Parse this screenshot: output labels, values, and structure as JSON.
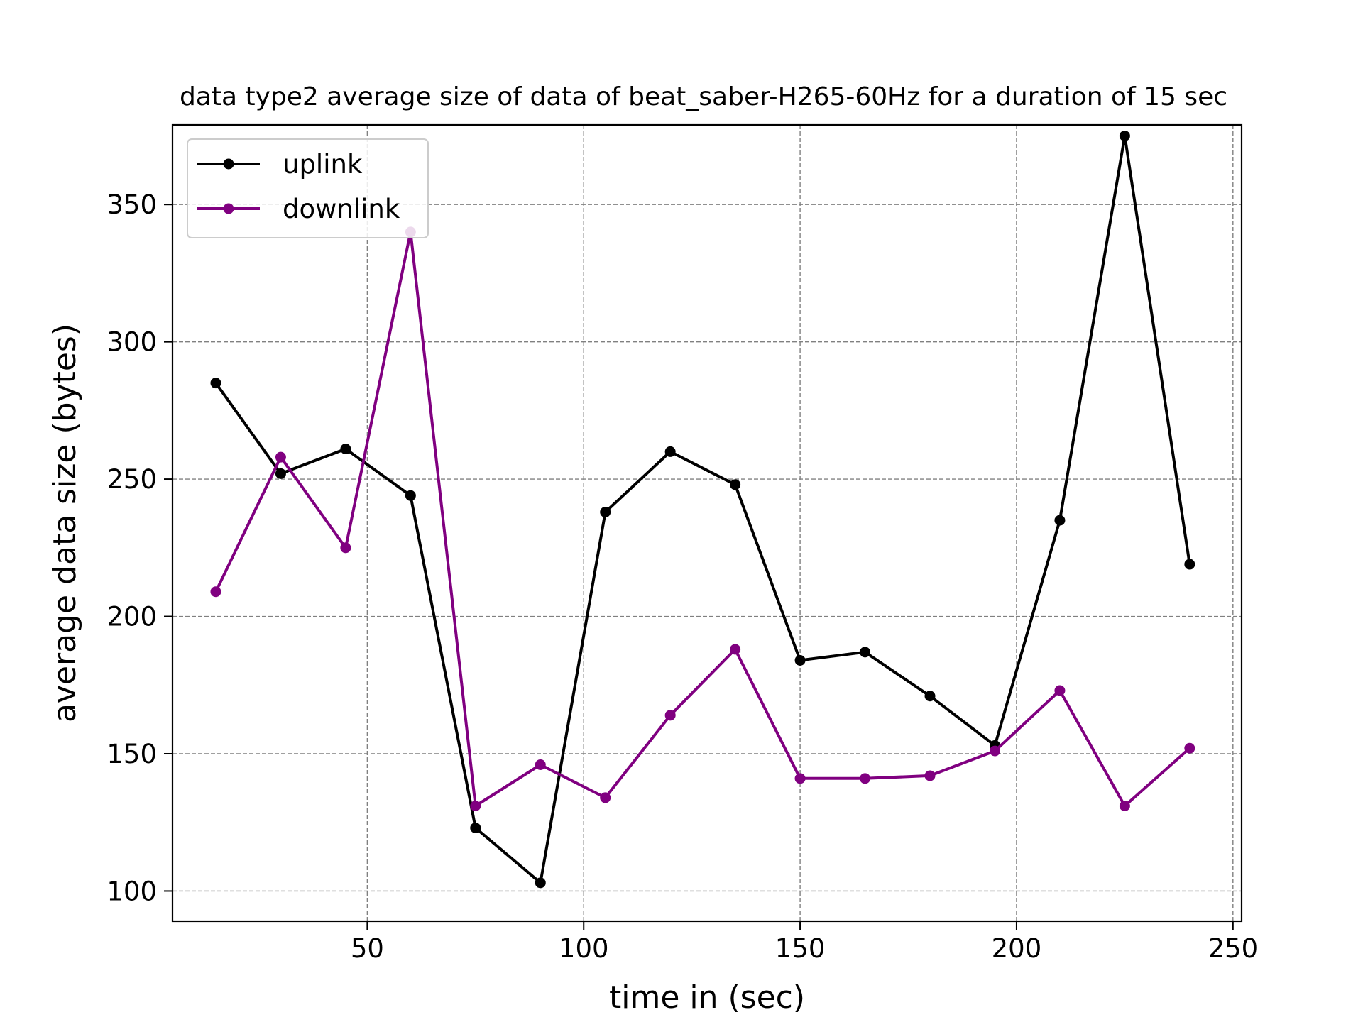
{
  "chart_data": {
    "type": "line",
    "title": "data type2 average size of data of beat_saber-H265-60Hz for a duration of 15 sec",
    "xlabel": "time in (sec)",
    "ylabel": "average data size (bytes)",
    "xlim": [
      5,
      252
    ],
    "ylim": [
      89,
      379
    ],
    "xticks": [
      50,
      100,
      150,
      200,
      250
    ],
    "xtick_labels": [
      "50",
      "100",
      "150",
      "200",
      "250"
    ],
    "yticks": [
      100,
      150,
      200,
      250,
      300,
      350
    ],
    "ytick_labels": [
      "100",
      "150",
      "200",
      "250",
      "300",
      "350"
    ],
    "grid": true,
    "legend_position": "upper-left",
    "x": [
      15,
      30,
      45,
      60,
      75,
      90,
      105,
      120,
      135,
      150,
      165,
      180,
      195,
      210,
      225,
      240
    ],
    "series": [
      {
        "name": "uplink",
        "color": "#000000",
        "values": [
          285,
          252,
          261,
          244,
          123,
          103,
          238,
          260,
          248,
          184,
          187,
          171,
          153,
          235,
          375,
          219
        ]
      },
      {
        "name": "downlink",
        "color": "#800080",
        "values": [
          209,
          258,
          225,
          340,
          131,
          146,
          134,
          164,
          188,
          141,
          141,
          142,
          151,
          173,
          131,
          152
        ]
      }
    ]
  }
}
